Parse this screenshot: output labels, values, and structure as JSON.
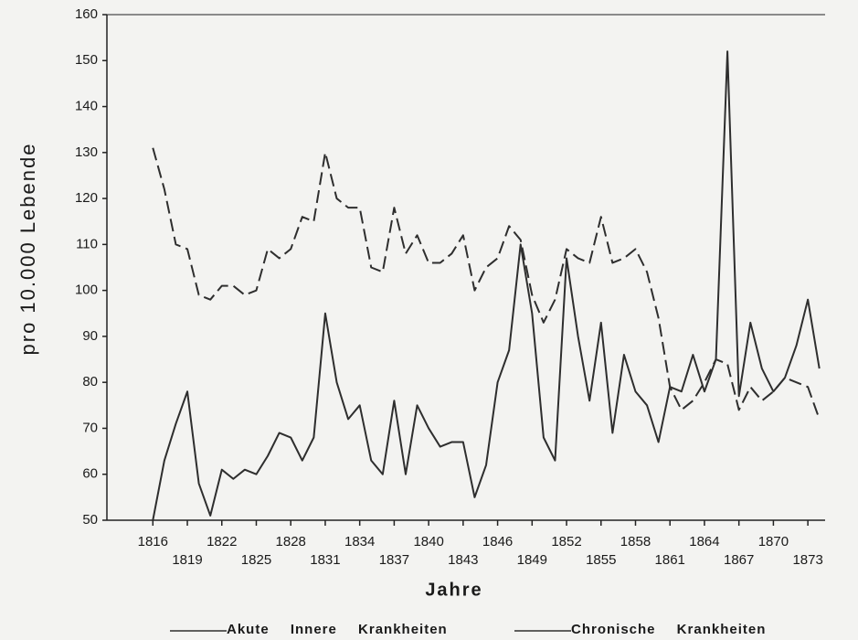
{
  "chart_data": {
    "type": "line",
    "x_label": "Jahre",
    "y_label": "pro 10.000 Lebende",
    "x": [
      1816,
      1817,
      1818,
      1819,
      1820,
      1821,
      1822,
      1823,
      1824,
      1825,
      1826,
      1827,
      1828,
      1829,
      1830,
      1831,
      1832,
      1833,
      1834,
      1835,
      1836,
      1837,
      1838,
      1839,
      1840,
      1841,
      1842,
      1843,
      1844,
      1845,
      1846,
      1847,
      1848,
      1849,
      1850,
      1851,
      1852,
      1853,
      1854,
      1855,
      1856,
      1857,
      1858,
      1859,
      1860,
      1861,
      1862,
      1863,
      1864,
      1865,
      1866,
      1867,
      1868,
      1869,
      1870,
      1871,
      1872,
      1873,
      1874
    ],
    "series": [
      {
        "name": "Akute Innere Krankheiten",
        "color": "#2e2e2e",
        "style": "solid",
        "values": [
          50,
          63,
          71,
          78,
          58,
          51,
          61,
          59,
          61,
          60,
          64,
          69,
          68,
          63,
          68,
          95,
          80,
          72,
          75,
          63,
          60,
          76,
          60,
          75,
          70,
          66,
          67,
          67,
          55,
          62,
          80,
          87,
          110,
          95,
          68,
          63,
          107,
          90,
          76,
          93,
          69,
          86,
          78,
          75,
          67,
          79,
          78,
          86,
          78,
          85,
          152,
          77,
          93,
          83,
          78,
          81,
          88,
          98,
          83
        ]
      },
      {
        "name": "Chronische Krankheiten",
        "color": "#2e2e2e",
        "style": "dashed",
        "values": [
          131,
          122,
          110,
          109,
          99,
          98,
          101,
          101,
          99,
          100,
          109,
          107,
          109,
          116,
          115,
          130,
          120,
          118,
          118,
          105,
          104,
          118,
          108,
          112,
          106,
          106,
          108,
          112,
          100,
          105,
          107,
          114,
          111,
          99,
          93,
          98,
          109,
          107,
          106,
          116,
          106,
          107,
          109,
          104,
          94,
          79,
          74,
          76,
          80,
          85,
          84,
          74,
          79,
          76,
          78,
          81,
          80,
          79,
          72
        ]
      }
    ],
    "xlim": [
      1812,
      1874.5
    ],
    "xticks": [
      1816,
      1819,
      1822,
      1825,
      1828,
      1831,
      1834,
      1837,
      1840,
      1843,
      1846,
      1849,
      1852,
      1855,
      1858,
      1861,
      1864,
      1867,
      1870,
      1873
    ],
    "ylim": [
      50,
      160
    ],
    "yticks": [
      50,
      60,
      70,
      80,
      90,
      100,
      110,
      120,
      130,
      140,
      150,
      160
    ]
  }
}
